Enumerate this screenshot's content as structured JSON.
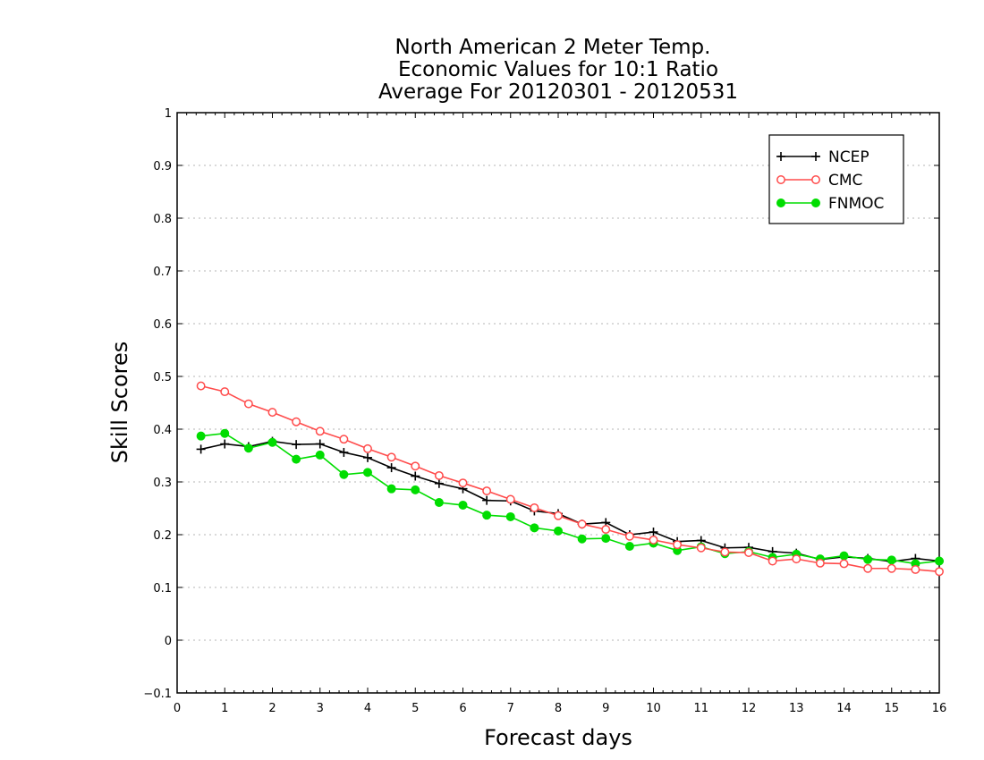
{
  "chart_data": {
    "type": "line",
    "title": [
      "North American 2 Meter Temp.",
      "Economic Values for 10:1 Ratio",
      "Average For 20120301 - 20120531"
    ],
    "xlabel": "Forecast days",
    "ylabel": "Skill Scores",
    "xlim": [
      0,
      16
    ],
    "ylim": [
      -0.1,
      1
    ],
    "xticks": [
      0,
      1,
      2,
      3,
      4,
      5,
      6,
      7,
      8,
      9,
      10,
      11,
      12,
      13,
      14,
      15,
      16
    ],
    "yticks": [
      -0.1,
      0,
      0.1,
      0.2,
      0.3,
      0.4,
      0.5,
      0.6,
      0.7,
      0.8,
      0.9,
      1
    ],
    "ytick_labels": [
      "−0.1",
      "0",
      "0.1",
      "0.2",
      "0.3",
      "0.4",
      "0.5",
      "0.6",
      "0.7",
      "0.8",
      "0.9",
      "1"
    ],
    "grid": true,
    "legend_position": "top-right",
    "x": [
      0.5,
      1,
      1.5,
      2,
      2.5,
      3,
      3.5,
      4,
      4.5,
      5,
      5.5,
      6,
      6.5,
      7,
      7.5,
      8,
      8.5,
      9,
      9.5,
      10,
      10.5,
      11,
      11.5,
      12,
      12.5,
      13,
      13.5,
      14,
      14.5,
      15,
      15.5,
      16
    ],
    "series": [
      {
        "name": "NCEP",
        "color": "#000000",
        "marker": "plus",
        "values": [
          0.362,
          0.372,
          0.367,
          0.377,
          0.371,
          0.372,
          0.356,
          0.346,
          0.327,
          0.311,
          0.297,
          0.287,
          0.265,
          0.264,
          0.245,
          0.24,
          0.22,
          0.223,
          0.2,
          0.205,
          0.187,
          0.189,
          0.175,
          0.176,
          0.168,
          0.165,
          0.153,
          0.158,
          0.155,
          0.149,
          0.155,
          0.15
        ]
      },
      {
        "name": "CMC",
        "color": "#ff4b4b",
        "marker": "open-circle",
        "values": [
          0.482,
          0.471,
          0.448,
          0.432,
          0.414,
          0.396,
          0.381,
          0.363,
          0.347,
          0.33,
          0.312,
          0.298,
          0.283,
          0.267,
          0.251,
          0.236,
          0.22,
          0.21,
          0.197,
          0.19,
          0.181,
          0.175,
          0.167,
          0.166,
          0.15,
          0.154,
          0.146,
          0.145,
          0.136,
          0.136,
          0.134,
          0.13
        ]
      },
      {
        "name": "FNMOC",
        "color": "#00dd00",
        "marker": "filled-circle",
        "values": [
          0.387,
          0.392,
          0.364,
          0.375,
          0.343,
          0.351,
          0.314,
          0.318,
          0.287,
          0.285,
          0.261,
          0.256,
          0.237,
          0.234,
          0.213,
          0.207,
          0.192,
          0.193,
          0.178,
          0.184,
          0.17,
          0.177,
          0.164,
          0.168,
          0.157,
          0.163,
          0.154,
          0.16,
          0.153,
          0.152,
          0.145,
          0.15
        ]
      }
    ]
  }
}
